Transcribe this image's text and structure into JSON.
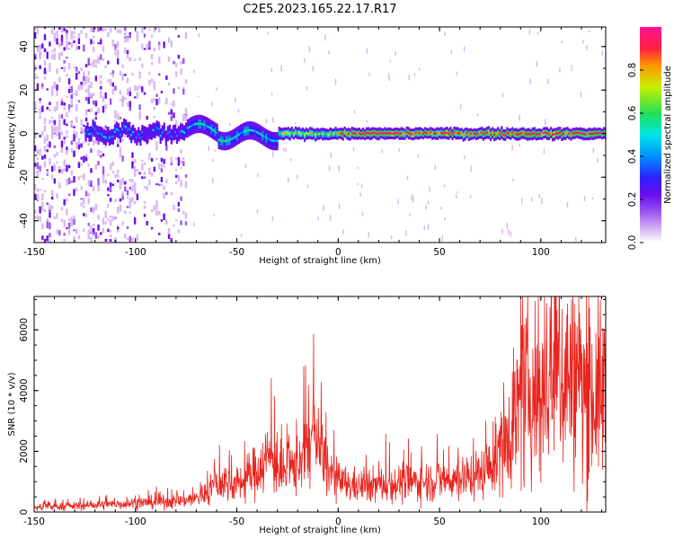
{
  "figure": {
    "title": "C2E5.2023.165.22.17.R17"
  },
  "colors": {
    "snr_line": "#e8251f",
    "colormap": [
      "#ffffff",
      "#d9b8f5",
      "#9b59ee",
      "#6a0dee",
      "#2d20ff",
      "#0090ff",
      "#00e5e5",
      "#22e055",
      "#c8f000",
      "#ff9900",
      "#ff2040",
      "#ff1493"
    ]
  },
  "chart_data": [
    {
      "type": "heatmap",
      "title": "",
      "xlabel": "Height of straight line (km)",
      "ylabel": "Frequency (Hz)",
      "xlim": [
        -150,
        132
      ],
      "ylim": [
        -50,
        49
      ],
      "xticks": [
        "-150",
        "-100",
        "-50",
        "0",
        "50",
        "100"
      ],
      "yticks": [
        "-40",
        "-20",
        "0",
        "20",
        "40"
      ],
      "colorbar": {
        "label": "Normalized spectral amplitude",
        "range": [
          0,
          1
        ],
        "ticks": [
          "0.0",
          "0.2",
          "0.4",
          "0.6",
          "0.8"
        ]
      },
      "ridge_frequency_hz": 0,
      "noise_region_x": [
        -150,
        -75
      ],
      "transition_region_x": [
        -75,
        -30
      ]
    },
    {
      "type": "line",
      "title": "",
      "xlabel": "Height of straight line (km)",
      "ylabel": "SNR (10 * v/v)",
      "xlim": [
        -150,
        132
      ],
      "ylim": [
        0,
        7100
      ],
      "xticks": [
        "-150",
        "-100",
        "-50",
        "0",
        "50",
        "100"
      ],
      "yticks": [
        "0",
        "2000",
        "4000",
        "6000"
      ],
      "series": [
        {
          "x": [
            -150,
            -140,
            -130,
            -120,
            -110,
            -100,
            -90,
            -80,
            -70,
            -65,
            -60,
            -55,
            -50,
            -45,
            -40,
            -35,
            -32,
            -28,
            -25,
            -20,
            -15,
            -12,
            -10,
            -5,
            0,
            5,
            10,
            20,
            30,
            40,
            50,
            60,
            70,
            75,
            80,
            85,
            90,
            95,
            100,
            105,
            110,
            115,
            120,
            125,
            130,
            132
          ],
          "values": [
            150,
            180,
            200,
            230,
            260,
            300,
            320,
            360,
            450,
            650,
            900,
            1000,
            900,
            1100,
            1400,
            1800,
            1800,
            1200,
            1300,
            1600,
            2200,
            2500,
            2200,
            1400,
            1000,
            900,
            850,
            900,
            950,
            1000,
            1050,
            1100,
            1250,
            1500,
            2000,
            3000,
            3500,
            4000,
            3800,
            4300,
            4600,
            4500,
            4200,
            3800,
            3900,
            4000
          ]
        }
      ]
    }
  ]
}
